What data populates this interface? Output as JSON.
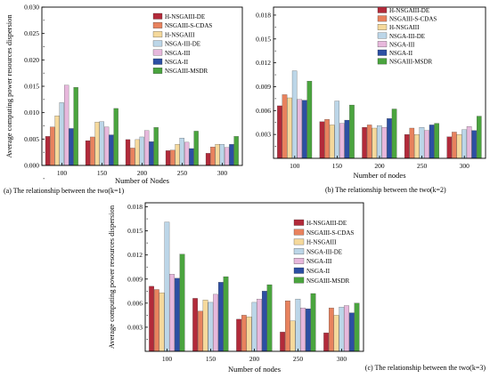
{
  "legend_labels": [
    "H-NSGAIII-DE",
    "NSGAIII-S-CDAS",
    "H-NSGAIII",
    "NSGA-III-DE",
    "NSGA-III",
    "NSGA-II",
    "NSGAIII-MSDR"
  ],
  "chart_data": [
    {
      "type": "bar",
      "panel": "a",
      "caption": "(a) The relationship between the two(k=1)",
      "xlabel": "Number of Nodes",
      "ylabel": "Average computing power resources dispersion",
      "categories": [
        "100",
        "150",
        "200",
        "250",
        "300"
      ],
      "ylim": [
        0,
        0.03
      ],
      "yticks": [
        "0.000",
        "0.005",
        "0.010",
        "0.015",
        "0.020",
        "0.025",
        "0.030"
      ],
      "legend_position": "top-center",
      "series": [
        {
          "name": "H-NSGAIII-DE",
          "color": "#b22a3a",
          "values": [
            0.0055,
            0.0047,
            0.0049,
            0.0028,
            0.0023
          ]
        },
        {
          "name": "NSGAIII-S-CDAS",
          "color": "#e8825e",
          "values": [
            0.0073,
            0.0054,
            0.0033,
            0.0029,
            0.0035
          ]
        },
        {
          "name": "H-NSGAIII",
          "color": "#f5d99c",
          "values": [
            0.0094,
            0.0082,
            0.0049,
            0.004,
            0.004
          ]
        },
        {
          "name": "NSGA-III-DE",
          "color": "#bcd6e8",
          "values": [
            0.0119,
            0.0083,
            0.0054,
            0.0052,
            0.004
          ]
        },
        {
          "name": "NSGA-III",
          "color": "#e7b8dc",
          "values": [
            0.0152,
            0.0073,
            0.0066,
            0.0044,
            0.0034
          ]
        },
        {
          "name": "NSGA-II",
          "color": "#2c4fa3",
          "values": [
            0.007,
            0.0058,
            0.0045,
            0.0032,
            0.004
          ]
        },
        {
          "name": "NSGAIII-MSDR",
          "color": "#4aa43e",
          "values": [
            0.0148,
            0.0108,
            0.0072,
            0.0065,
            0.0055
          ]
        }
      ]
    },
    {
      "type": "bar",
      "panel": "b",
      "caption": "(b) The relationship between the two(k=2)",
      "xlabel": "Number of nodes",
      "ylabel": "",
      "categories": [
        "100",
        "150",
        "200",
        "250",
        "300"
      ],
      "ylim": [
        0,
        0.019
      ],
      "yticks": [
        "0.003",
        "0.006",
        "0.009",
        "0.012",
        "0.015",
        "0.018"
      ],
      "legend_position": "top-right",
      "series": [
        {
          "name": "H-NSGAIII-DE",
          "color": "#b22a3a",
          "values": [
            0.0066,
            0.0046,
            0.0039,
            0.003,
            0.0027
          ]
        },
        {
          "name": "NSGAIII-S-CDAS",
          "color": "#e8825e",
          "values": [
            0.008,
            0.0049,
            0.0042,
            0.0038,
            0.0033
          ]
        },
        {
          "name": "H-NSGAIII",
          "color": "#f5d99c",
          "values": [
            0.0076,
            0.0042,
            0.0038,
            0.003,
            0.003
          ]
        },
        {
          "name": "NSGA-III-DE",
          "color": "#bcd6e8",
          "values": [
            0.011,
            0.0072,
            0.0041,
            0.0039,
            0.0036
          ]
        },
        {
          "name": "NSGA-III",
          "color": "#e7b8dc",
          "values": [
            0.0074,
            0.0044,
            0.0039,
            0.0035,
            0.004
          ]
        },
        {
          "name": "NSGA-II",
          "color": "#2c4fa3",
          "values": [
            0.0073,
            0.0048,
            0.005,
            0.0042,
            0.0035
          ]
        },
        {
          "name": "NSGAIII-MSDR",
          "color": "#4aa43e",
          "values": [
            0.0097,
            0.0067,
            0.0062,
            0.0044,
            0.0053
          ]
        }
      ]
    },
    {
      "type": "bar",
      "panel": "c",
      "caption": "(c) The relationship between the two(k=3)",
      "xlabel": "Number of nodes",
      "ylabel": "Average computing power resources dispersion",
      "categories": [
        "100",
        "150",
        "200",
        "250",
        "300"
      ],
      "ylim": [
        0,
        0.0185
      ],
      "yticks": [
        "0.003",
        "0.006",
        "0.009",
        "0.012",
        "0.015",
        "0.018"
      ],
      "legend_position": "top-right",
      "series": [
        {
          "name": "H-NSGAIII-DE",
          "color": "#b22a3a",
          "values": [
            0.0081,
            0.0066,
            0.004,
            0.0024,
            0.0023
          ]
        },
        {
          "name": "NSGAIII-S-CDAS",
          "color": "#e8825e",
          "values": [
            0.0077,
            0.005,
            0.0045,
            0.0063,
            0.0054
          ]
        },
        {
          "name": "H-NSGAIII",
          "color": "#f5d99c",
          "values": [
            0.0073,
            0.0064,
            0.0043,
            0.0038,
            0.0045
          ]
        },
        {
          "name": "NSGA-III-DE",
          "color": "#bcd6e8",
          "values": [
            0.0161,
            0.0061,
            0.0061,
            0.0065,
            0.0055
          ]
        },
        {
          "name": "NSGA-III",
          "color": "#e7b8dc",
          "values": [
            0.0096,
            0.0071,
            0.0065,
            0.0054,
            0.0057
          ]
        },
        {
          "name": "NSGA-II",
          "color": "#2c4fa3",
          "values": [
            0.0091,
            0.0086,
            0.0075,
            0.0053,
            0.0048
          ]
        },
        {
          "name": "NSGAIII-MSDR",
          "color": "#4aa43e",
          "values": [
            0.0121,
            0.0093,
            0.0083,
            0.0072,
            0.006
          ]
        }
      ]
    }
  ]
}
